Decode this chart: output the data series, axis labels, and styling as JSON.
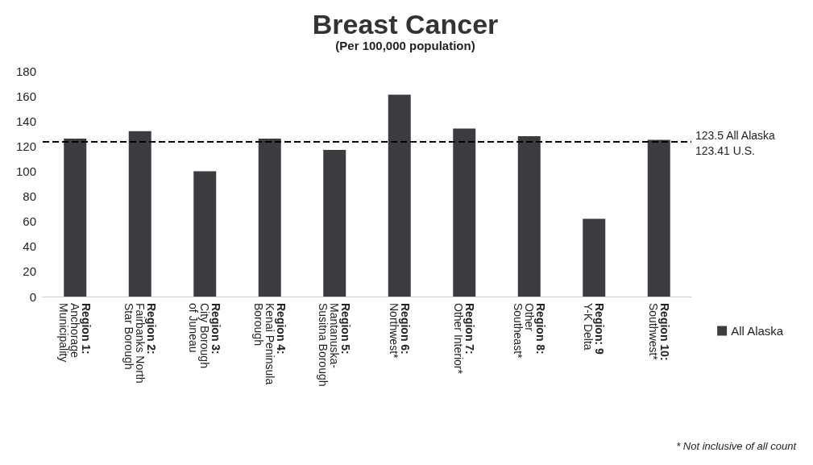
{
  "chart_data": {
    "type": "bar",
    "title": "Breast Cancer",
    "subtitle": "(Per 100,000 population)",
    "categories": [
      "Region 1:\nAnchorage\nMunicipality",
      "Region 2:\nFairbanks North\nStar Borough",
      "Region 3:\nCity Borough\nof Juneau",
      "Region 4:\nKenai Peninsula\nBorough",
      "Region 5:\nMantanuska-\nSusitna Borough",
      "Region 6:\nNorthwest*",
      "Region 7:\nOther Interior*",
      "Region 8:\nOther\nSoutheast*",
      "Region: 9\nY-K Delta",
      "Region 10:\nSouthwest*"
    ],
    "series": [
      {
        "name": "All Alaska",
        "color": "#3d3b40",
        "values": [
          126,
          132,
          100,
          126,
          117,
          161,
          134,
          128,
          62,
          125
        ]
      }
    ],
    "ylim": [
      0,
      180
    ],
    "yticks": [
      0,
      20,
      40,
      60,
      80,
      100,
      120,
      140,
      160,
      180
    ],
    "grid": false,
    "legend": "right",
    "ref_lines": [
      {
        "axis": "y",
        "value": 123.5,
        "label": "123.5 All Alaska",
        "line_style": "dashed",
        "color": "#000000"
      }
    ],
    "annotations": [
      "123.41 U.S.",
      "* Not inclusive of all count"
    ]
  }
}
